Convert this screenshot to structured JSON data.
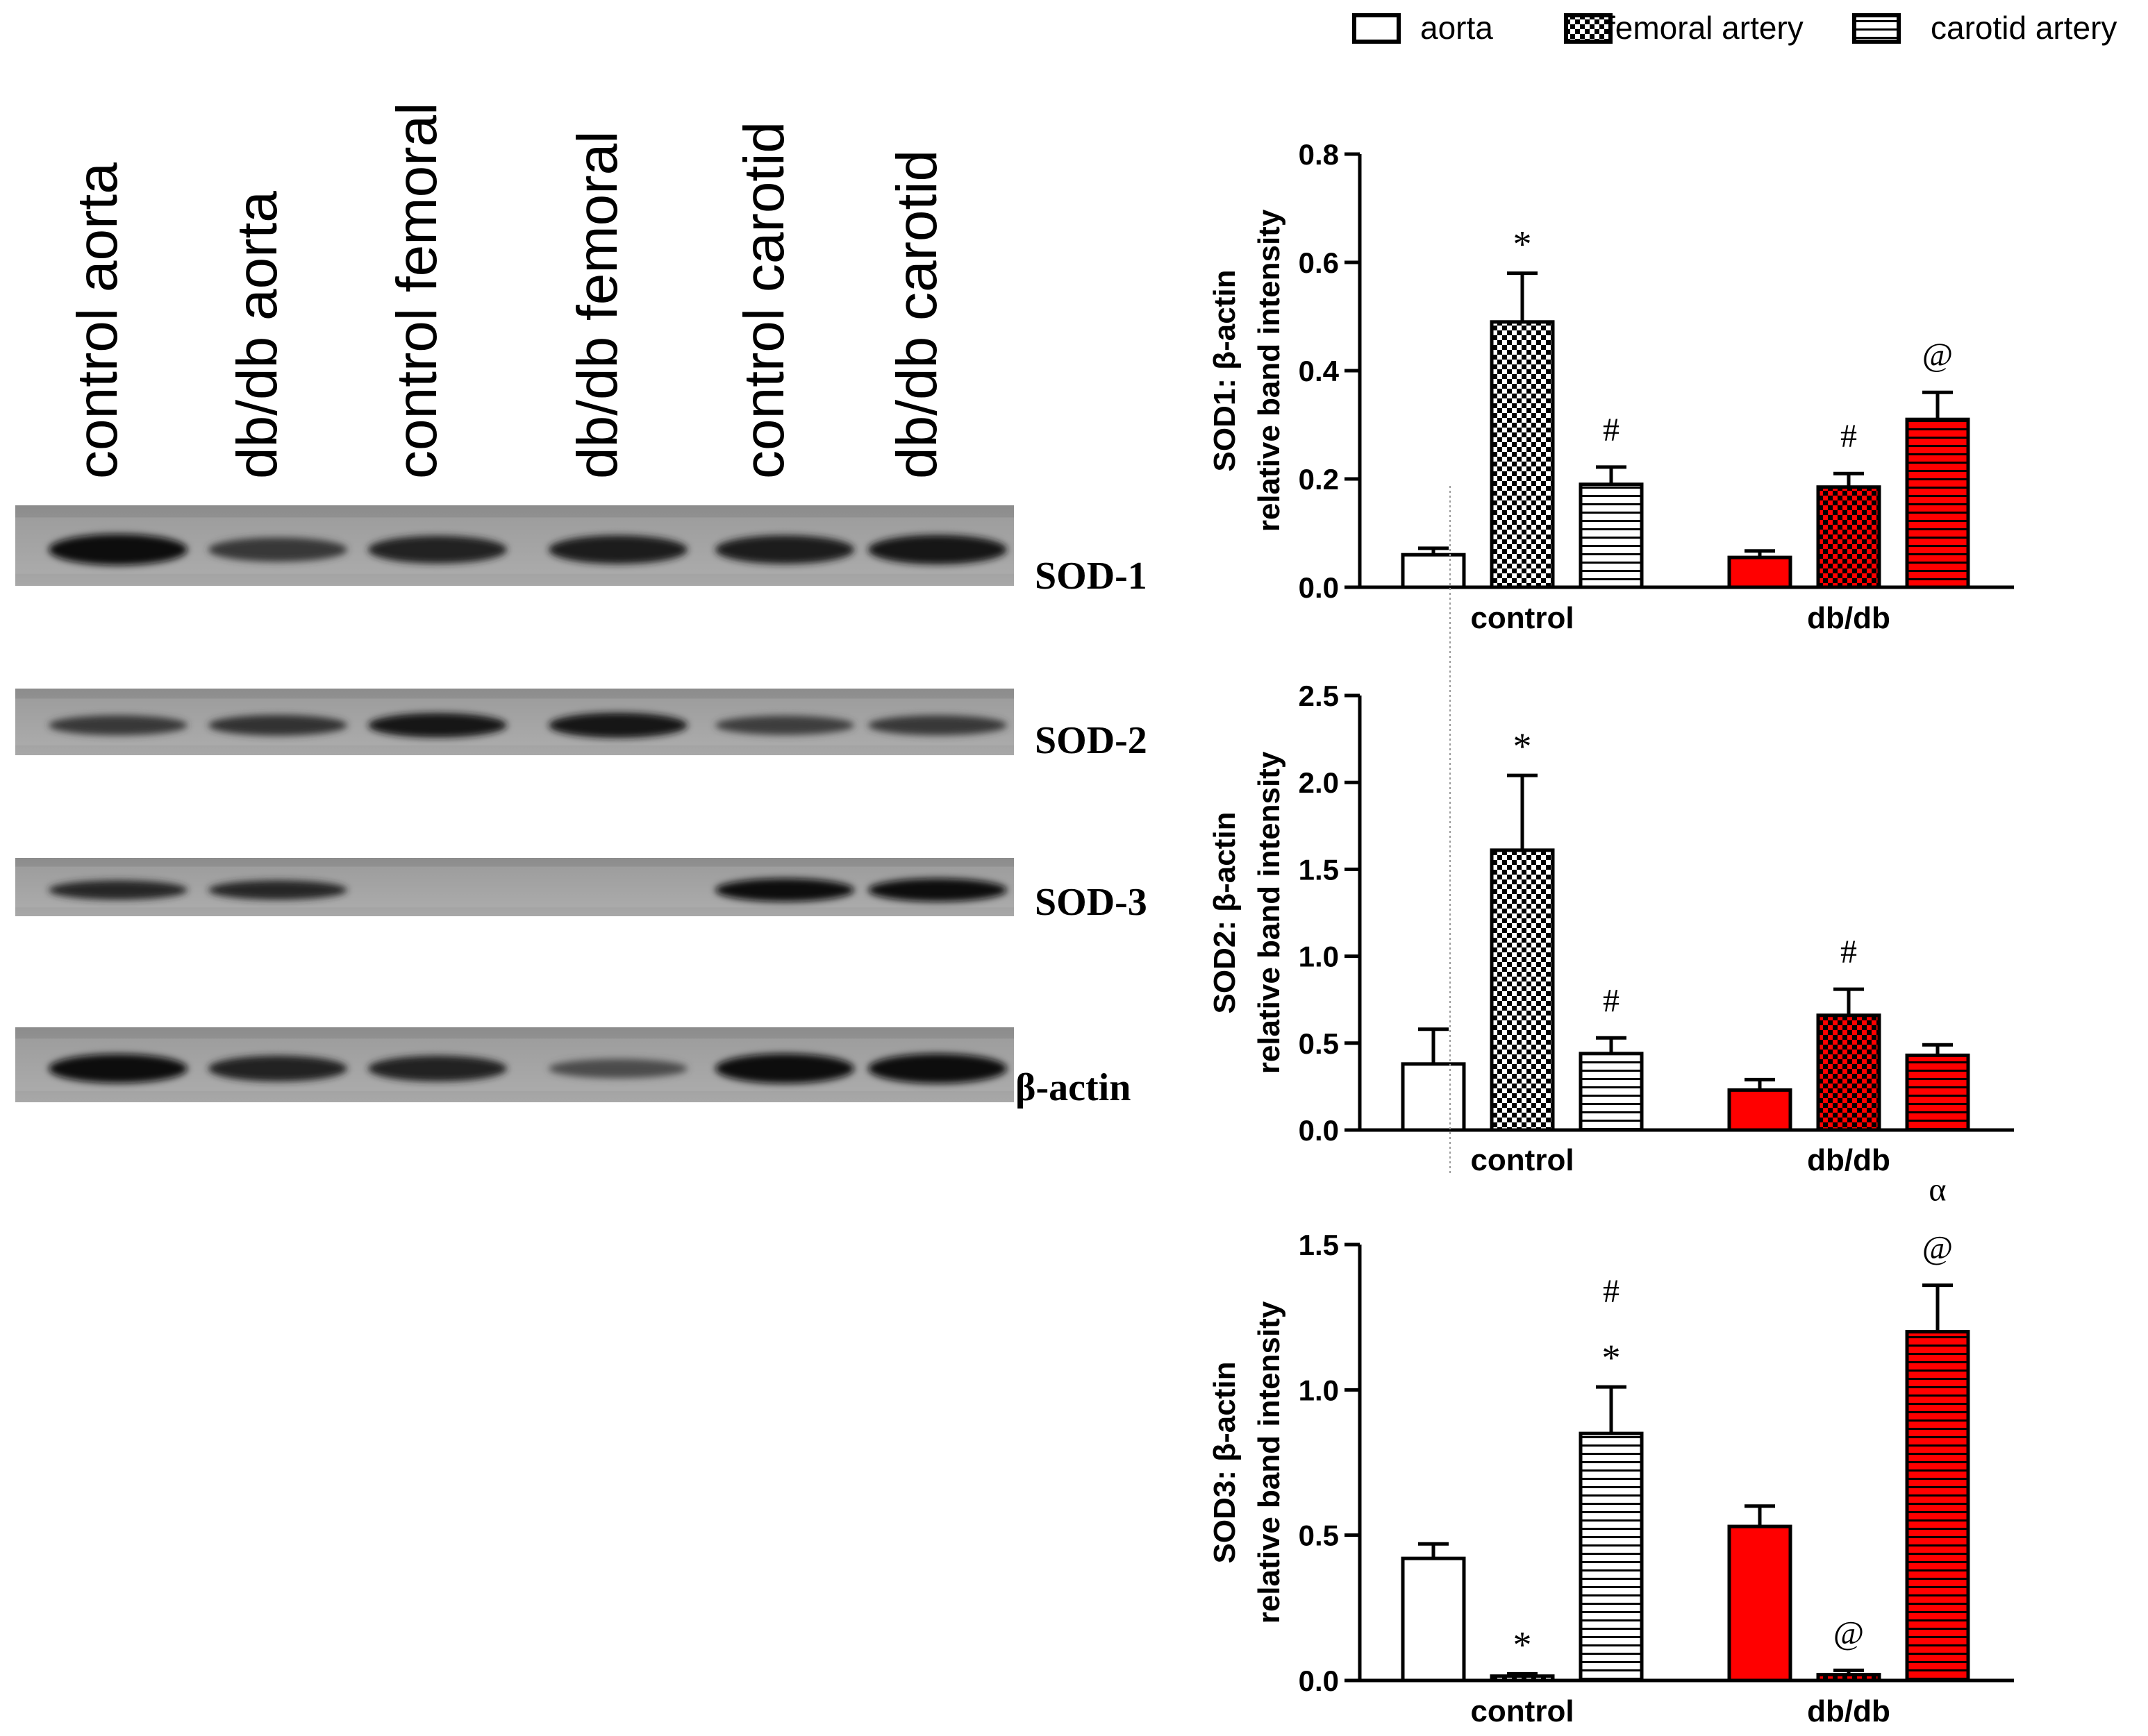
{
  "blot": {
    "lanes": [
      "control aorta",
      "db/db aorta",
      "control femoral",
      "db/db femoral",
      "control carotid",
      "db/db carotid"
    ],
    "rows": [
      {
        "label": "SOD-1",
        "intensity": [
          0.95,
          0.55,
          0.75,
          0.8,
          0.8,
          0.85
        ]
      },
      {
        "label": "SOD-2",
        "intensity": [
          0.55,
          0.6,
          0.85,
          0.9,
          0.5,
          0.55
        ]
      },
      {
        "label": "SOD-3",
        "intensity": [
          0.7,
          0.7,
          0.0,
          0.0,
          1.0,
          1.0
        ]
      },
      {
        "label": "β-actin",
        "intensity": [
          0.95,
          0.75,
          0.75,
          0.35,
          1.0,
          1.0
        ]
      }
    ]
  },
  "legend": {
    "items": [
      {
        "label": "aorta",
        "pattern": "open"
      },
      {
        "label": "femoral artery",
        "pattern": "checker"
      },
      {
        "label": "carotid artery",
        "pattern": "hstripe"
      }
    ]
  },
  "colors": {
    "control": "#ffffff",
    "dbdb": "#ff0000",
    "axis": "#000000"
  },
  "chart_data": [
    {
      "type": "bar",
      "ylabel_line1": "SOD1: β-actin",
      "ylabel_line2": "relative band intensity",
      "ylim": [
        0,
        0.8
      ],
      "yticks": [
        "0.0",
        "0.2",
        "0.4",
        "0.6",
        "0.8"
      ],
      "tick_values": [
        0,
        0.2,
        0.4,
        0.6,
        0.8
      ],
      "categories": [
        "control",
        "db/db"
      ],
      "series": [
        {
          "name": "aorta",
          "values": [
            0.06,
            0.055
          ],
          "errors": [
            0.012,
            0.012
          ],
          "annotations": [
            "",
            ""
          ]
        },
        {
          "name": "femoral artery",
          "values": [
            0.49,
            0.185
          ],
          "errors": [
            0.09,
            0.025
          ],
          "annotations": [
            "*",
            "#"
          ]
        },
        {
          "name": "carotid artery",
          "values": [
            0.19,
            0.31
          ],
          "errors": [
            0.032,
            0.05
          ],
          "annotations": [
            "#",
            "@"
          ]
        }
      ]
    },
    {
      "type": "bar",
      "ylabel_line1": "SOD2: β-actin",
      "ylabel_line2": "relative band intensity",
      "ylim": [
        0,
        2.5
      ],
      "yticks": [
        "0.0",
        "0.5",
        "1.0",
        "1.5",
        "2.0",
        "2.5"
      ],
      "tick_values": [
        0,
        0.5,
        1.0,
        1.5,
        2.0,
        2.5
      ],
      "categories": [
        "control",
        "db/db"
      ],
      "series": [
        {
          "name": "aorta",
          "values": [
            0.38,
            0.23
          ],
          "errors": [
            0.2,
            0.06
          ],
          "annotations": [
            "",
            ""
          ]
        },
        {
          "name": "femoral artery",
          "values": [
            1.61,
            0.66
          ],
          "errors": [
            0.43,
            0.15
          ],
          "annotations": [
            "*",
            "#"
          ]
        },
        {
          "name": "carotid artery",
          "values": [
            0.44,
            0.43
          ],
          "errors": [
            0.09,
            0.06
          ],
          "annotations": [
            "#",
            ""
          ]
        }
      ]
    },
    {
      "type": "bar",
      "ylabel_line1": "SOD3: β-actin",
      "ylabel_line2": "relative band intensity",
      "ylim": [
        0,
        1.5
      ],
      "yticks": [
        "0.0",
        "0.5",
        "1.0",
        "1.5"
      ],
      "tick_values": [
        0,
        0.5,
        1.0,
        1.5
      ],
      "categories": [
        "control",
        "db/db"
      ],
      "series": [
        {
          "name": "aorta",
          "values": [
            0.42,
            0.53
          ],
          "errors": [
            0.05,
            0.07
          ],
          "annotations": [
            "",
            ""
          ]
        },
        {
          "name": "femoral artery",
          "values": [
            0.015,
            0.02
          ],
          "errors": [
            0.008,
            0.015
          ],
          "annotations": [
            "*",
            "@"
          ]
        },
        {
          "name": "carotid artery",
          "values": [
            0.85,
            1.2
          ],
          "errors": [
            0.16,
            0.16
          ],
          "annotations": [
            "#\n*",
            "α\n@"
          ]
        }
      ]
    }
  ]
}
